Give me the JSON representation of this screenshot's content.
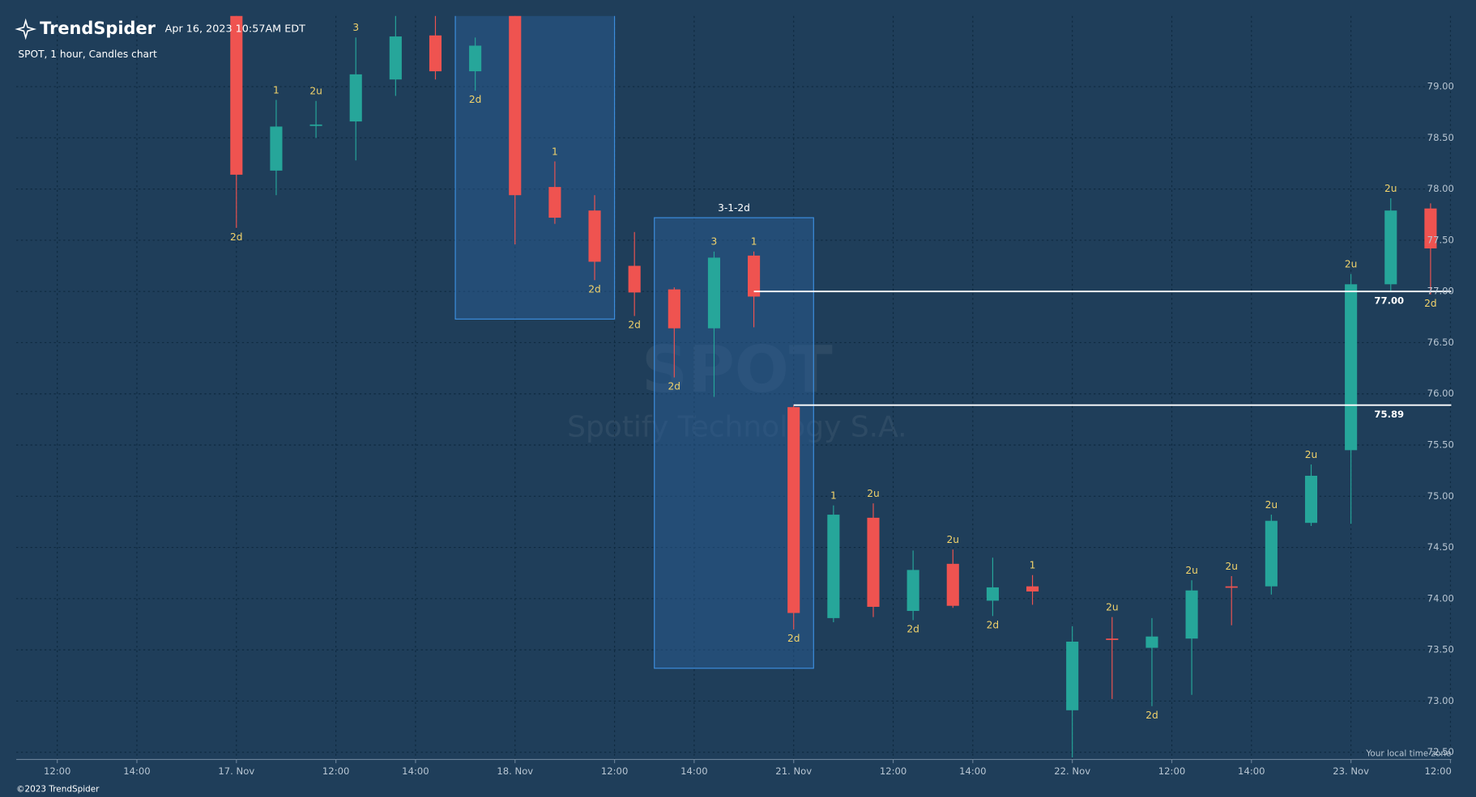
{
  "header": {
    "brand": "TrendSpider",
    "timestamp": "Apr 16, 2023 10:57AM EDT",
    "footer": "©2023 TrendSpider",
    "timezone_note": "Your local time zone"
  },
  "chart_data": {
    "type": "candlestick",
    "title": "SPOT, 1 hour, Candles chart",
    "watermark": "SPOT",
    "subtitle": "Spotify Technology S.A.",
    "up_color": "#26a69a",
    "down_color": "#ef5350",
    "grid": true,
    "x": [
      0,
      1,
      2,
      3,
      4,
      5,
      6,
      7,
      8,
      9,
      10,
      11,
      12,
      13,
      14,
      15,
      16,
      17,
      18,
      19,
      20,
      21,
      22,
      23,
      24,
      25,
      26,
      27,
      28,
      29,
      30
    ],
    "open": [
      79.75,
      78.18,
      78.62,
      78.66,
      79.07,
      79.5,
      79.15,
      79.8,
      78.02,
      77.79,
      77.25,
      77.02,
      76.64,
      77.35,
      75.87,
      73.81,
      74.79,
      73.88,
      74.34,
      73.98,
      74.12,
      72.91,
      73.61,
      73.52,
      73.61,
      74.12,
      74.12,
      74.74,
      75.45,
      77.07,
      77.81
    ],
    "high": [
      79.9,
      78.87,
      78.86,
      79.48,
      79.75,
      79.75,
      79.48,
      79.9,
      78.27,
      77.94,
      77.58,
      77.04,
      77.39,
      77.39,
      75.89,
      74.91,
      74.93,
      74.47,
      74.48,
      74.4,
      74.23,
      73.73,
      73.82,
      73.81,
      74.18,
      74.22,
      74.82,
      75.31,
      77.17,
      77.91,
      77.86
    ],
    "low": [
      77.62,
      77.94,
      78.5,
      78.28,
      78.91,
      79.07,
      78.96,
      77.46,
      77.66,
      77.11,
      76.76,
      76.16,
      75.97,
      76.65,
      73.7,
      73.77,
      73.82,
      73.79,
      73.91,
      73.83,
      73.94,
      72.45,
      73.02,
      72.95,
      73.06,
      73.74,
      74.04,
      74.71,
      74.73,
      77.0,
      76.97
    ],
    "close": [
      78.14,
      78.61,
      78.63,
      79.12,
      79.49,
      79.15,
      79.4,
      77.94,
      77.72,
      77.29,
      76.99,
      76.64,
      77.33,
      76.95,
      73.86,
      74.82,
      73.92,
      74.28,
      73.93,
      74.11,
      74.07,
      73.58,
      73.6,
      73.63,
      74.08,
      74.11,
      74.76,
      75.2,
      77.07,
      77.79,
      77.42
    ],
    "labels": [
      "2d",
      "1",
      "2u",
      "3",
      null,
      null,
      "2d",
      null,
      "1",
      "2d",
      "2d",
      "2d",
      "3",
      "1",
      "2d",
      "1",
      "2u",
      "2d",
      "2u",
      "2d",
      "1",
      null,
      "2u",
      "2d",
      "2u",
      "2u",
      "2u",
      "2u",
      "2u",
      "2u",
      "2d"
    ],
    "xlim": [
      -5.53,
      30.52
    ],
    "xticks": [
      {
        "value": -4.5,
        "label": "12:00"
      },
      {
        "value": -2.5,
        "label": "14:00"
      },
      {
        "value": 0,
        "label": "17. Nov"
      },
      {
        "value": 2.5,
        "label": "12:00"
      },
      {
        "value": 4.5,
        "label": "14:00"
      },
      {
        "value": 7,
        "label": "18. Nov"
      },
      {
        "value": 9.5,
        "label": "12:00"
      },
      {
        "value": 11.5,
        "label": "14:00"
      },
      {
        "value": 14,
        "label": "21. Nov"
      },
      {
        "value": 16.5,
        "label": "12:00"
      },
      {
        "value": 18.5,
        "label": "14:00"
      },
      {
        "value": 21,
        "label": "22. Nov"
      },
      {
        "value": 23.5,
        "label": "12:00"
      },
      {
        "value": 25.5,
        "label": "14:00"
      },
      {
        "value": 28,
        "label": "23. Nov"
      },
      {
        "value": 30.5,
        "label": "12:00"
      }
    ],
    "ylim": [
      72.43,
      79.69
    ],
    "yticks": [
      {
        "value": 72.5,
        "label": "72.50"
      },
      {
        "value": 73,
        "label": "73.00"
      },
      {
        "value": 73.5,
        "label": "73.50"
      },
      {
        "value": 74,
        "label": "74.00"
      },
      {
        "value": 74.5,
        "label": "74.50"
      },
      {
        "value": 75,
        "label": "75.00"
      },
      {
        "value": 75.5,
        "label": "75.50"
      },
      {
        "value": 76,
        "label": "76.00"
      },
      {
        "value": 76.5,
        "label": "76.50"
      },
      {
        "value": 77,
        "label": "77.00"
      },
      {
        "value": 77.5,
        "label": "77.50"
      },
      {
        "value": 78,
        "label": "78.00"
      },
      {
        "value": 78.5,
        "label": "78.50"
      },
      {
        "value": 79,
        "label": "79.00"
      }
    ],
    "levels": [
      {
        "value": 77,
        "label": "77.00",
        "from": 13
      },
      {
        "value": 75.89,
        "label": "75.89",
        "from": 14
      }
    ],
    "boxes": [
      {
        "from": 6,
        "to": 9,
        "low": 76.73,
        "high": 79.8
      },
      {
        "from": 11,
        "to": 14,
        "low": 73.32,
        "high": 77.72,
        "label": "3-1-2d"
      }
    ]
  }
}
